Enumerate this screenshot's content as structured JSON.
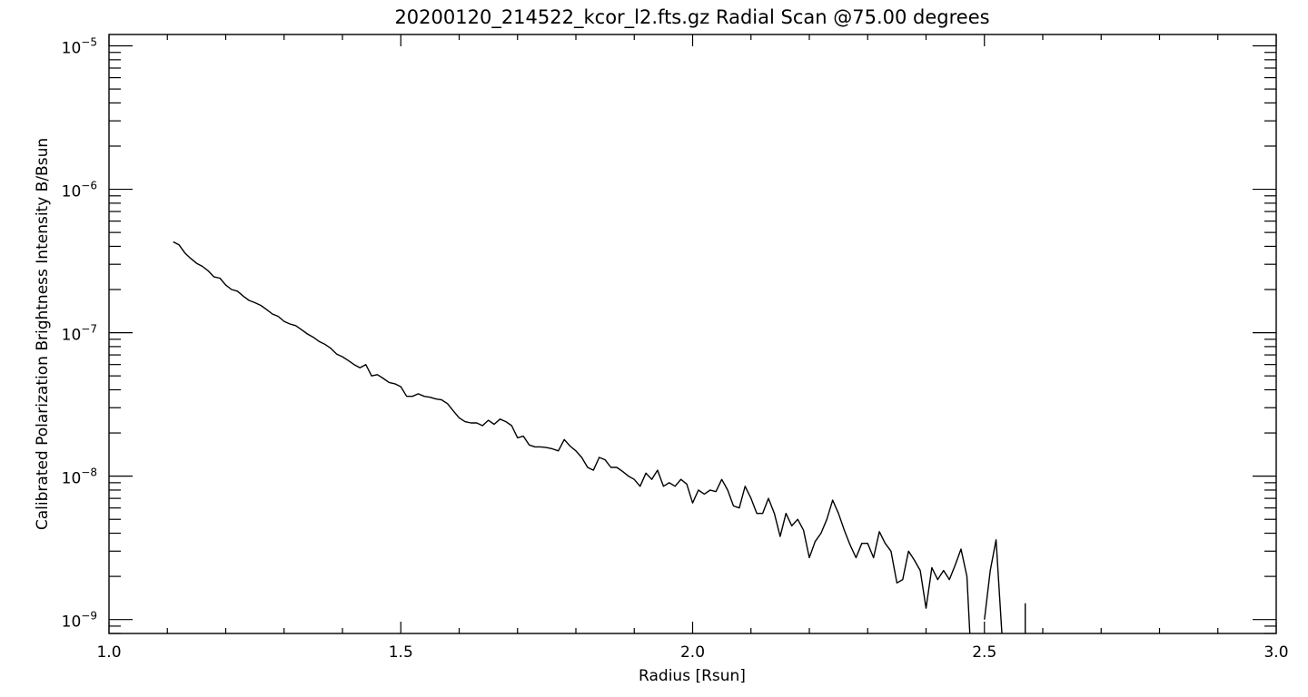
{
  "chart_data": {
    "type": "line",
    "title": "20200120_214522_kcor_l2.fts.gz Radial Scan @75.00 degrees",
    "xlabel": "Radius [Rsun]",
    "ylabel": "Calibrated Polarization Brightness Intensity B/Bsun",
    "xlim": [
      1.0,
      3.0
    ],
    "ylim": [
      8e-10,
      1.2e-05
    ],
    "yscale": "log",
    "grid": false,
    "x_ticks": [
      1.0,
      1.5,
      2.0,
      2.5,
      3.0
    ],
    "x_tick_labels": [
      "1.0",
      "1.5",
      "2.0",
      "2.5",
      "3.0"
    ],
    "y_ticks": [
      1e-09,
      1e-08,
      1e-07,
      1e-06,
      1e-05
    ],
    "y_tick_labels": [
      {
        "base": "10",
        "exp": "−9"
      },
      {
        "base": "10",
        "exp": "−8"
      },
      {
        "base": "10",
        "exp": "−7"
      },
      {
        "base": "10",
        "exp": "−6"
      },
      {
        "base": "10",
        "exp": "−5"
      }
    ],
    "series": [
      {
        "segments": [
          [
            [
              1.11,
              4.3e-07
            ],
            [
              1.12,
              4.1e-07
            ],
            [
              1.13,
              3.6e-07
            ],
            [
              1.14,
              3.3e-07
            ],
            [
              1.15,
              3.05e-07
            ],
            [
              1.16,
              2.9e-07
            ],
            [
              1.17,
              2.7e-07
            ],
            [
              1.18,
              2.45e-07
            ],
            [
              1.19,
              2.4e-07
            ],
            [
              1.2,
              2.15e-07
            ],
            [
              1.21,
              2e-07
            ],
            [
              1.22,
              1.95e-07
            ],
            [
              1.23,
              1.8e-07
            ],
            [
              1.24,
              1.68e-07
            ],
            [
              1.25,
              1.62e-07
            ],
            [
              1.26,
              1.55e-07
            ],
            [
              1.27,
              1.45e-07
            ],
            [
              1.28,
              1.35e-07
            ],
            [
              1.29,
              1.3e-07
            ],
            [
              1.3,
              1.2e-07
            ],
            [
              1.31,
              1.15e-07
            ],
            [
              1.32,
              1.12e-07
            ],
            [
              1.33,
              1.05e-07
            ],
            [
              1.34,
              9.8e-08
            ],
            [
              1.35,
              9.3e-08
            ],
            [
              1.36,
              8.7e-08
            ],
            [
              1.37,
              8.3e-08
            ],
            [
              1.38,
              7.8e-08
            ],
            [
              1.39,
              7.1e-08
            ],
            [
              1.4,
              6.8e-08
            ],
            [
              1.41,
              6.4e-08
            ],
            [
              1.42,
              6e-08
            ],
            [
              1.43,
              5.7e-08
            ],
            [
              1.44,
              6e-08
            ],
            [
              1.45,
              5e-08
            ],
            [
              1.46,
              5.1e-08
            ],
            [
              1.47,
              4.8e-08
            ],
            [
              1.48,
              4.5e-08
            ],
            [
              1.49,
              4.4e-08
            ],
            [
              1.5,
              4.2e-08
            ],
            [
              1.51,
              3.6e-08
            ],
            [
              1.52,
              3.6e-08
            ],
            [
              1.53,
              3.75e-08
            ],
            [
              1.54,
              3.6e-08
            ],
            [
              1.55,
              3.55e-08
            ],
            [
              1.56,
              3.45e-08
            ],
            [
              1.57,
              3.4e-08
            ],
            [
              1.58,
              3.2e-08
            ],
            [
              1.59,
              2.85e-08
            ],
            [
              1.6,
              2.55e-08
            ],
            [
              1.61,
              2.4e-08
            ],
            [
              1.62,
              2.35e-08
            ],
            [
              1.63,
              2.35e-08
            ],
            [
              1.64,
              2.25e-08
            ],
            [
              1.65,
              2.45e-08
            ],
            [
              1.66,
              2.3e-08
            ],
            [
              1.67,
              2.5e-08
            ],
            [
              1.68,
              2.4e-08
            ],
            [
              1.69,
              2.25e-08
            ],
            [
              1.7,
              1.85e-08
            ],
            [
              1.71,
              1.9e-08
            ],
            [
              1.72,
              1.65e-08
            ],
            [
              1.73,
              1.6e-08
            ],
            [
              1.74,
              1.6e-08
            ],
            [
              1.75,
              1.58e-08
            ],
            [
              1.76,
              1.55e-08
            ],
            [
              1.77,
              1.5e-08
            ],
            [
              1.78,
              1.8e-08
            ],
            [
              1.79,
              1.62e-08
            ],
            [
              1.8,
              1.5e-08
            ],
            [
              1.81,
              1.35e-08
            ],
            [
              1.82,
              1.15e-08
            ],
            [
              1.83,
              1.1e-08
            ],
            [
              1.84,
              1.35e-08
            ],
            [
              1.85,
              1.3e-08
            ],
            [
              1.86,
              1.15e-08
            ],
            [
              1.87,
              1.15e-08
            ],
            [
              1.88,
              1.08e-08
            ],
            [
              1.89,
              1e-08
            ],
            [
              1.9,
              9.5e-09
            ],
            [
              1.91,
              8.5e-09
            ],
            [
              1.92,
              1.05e-08
            ],
            [
              1.93,
              9.5e-09
            ],
            [
              1.94,
              1.1e-08
            ],
            [
              1.95,
              8.5e-09
            ],
            [
              1.96,
              9e-09
            ],
            [
              1.97,
              8.5e-09
            ],
            [
              1.98,
              9.5e-09
            ],
            [
              1.99,
              8.8e-09
            ],
            [
              2.0,
              6.5e-09
            ],
            [
              2.01,
              8e-09
            ],
            [
              2.02,
              7.5e-09
            ],
            [
              2.03,
              8e-09
            ],
            [
              2.04,
              7.8e-09
            ],
            [
              2.05,
              9.5e-09
            ],
            [
              2.06,
              8e-09
            ],
            [
              2.07,
              6.2e-09
            ],
            [
              2.08,
              6e-09
            ],
            [
              2.09,
              8.5e-09
            ],
            [
              2.1,
              7e-09
            ],
            [
              2.11,
              5.5e-09
            ],
            [
              2.12,
              5.5e-09
            ],
            [
              2.13,
              7e-09
            ],
            [
              2.14,
              5.5e-09
            ],
            [
              2.15,
              3.8e-09
            ],
            [
              2.16,
              5.5e-09
            ],
            [
              2.17,
              4.5e-09
            ],
            [
              2.18,
              5e-09
            ],
            [
              2.19,
              4.2e-09
            ],
            [
              2.2,
              2.7e-09
            ],
            [
              2.21,
              3.5e-09
            ],
            [
              2.22,
              4e-09
            ],
            [
              2.23,
              5e-09
            ],
            [
              2.24,
              6.8e-09
            ],
            [
              2.25,
              5.5e-09
            ],
            [
              2.26,
              4.2e-09
            ],
            [
              2.27,
              3.3e-09
            ],
            [
              2.28,
              2.7e-09
            ],
            [
              2.29,
              3.4e-09
            ],
            [
              2.3,
              3.4e-09
            ],
            [
              2.31,
              2.7e-09
            ],
            [
              2.32,
              4.1e-09
            ],
            [
              2.33,
              3.4e-09
            ],
            [
              2.34,
              3e-09
            ],
            [
              2.35,
              1.8e-09
            ],
            [
              2.36,
              1.9e-09
            ],
            [
              2.37,
              3e-09
            ],
            [
              2.38,
              2.6e-09
            ],
            [
              2.39,
              2.2e-09
            ],
            [
              2.4,
              1.2e-09
            ],
            [
              2.41,
              2.3e-09
            ],
            [
              2.42,
              1.9e-09
            ],
            [
              2.43,
              2.2e-09
            ],
            [
              2.44,
              1.9e-09
            ],
            [
              2.45,
              2.4e-09
            ],
            [
              2.46,
              3.1e-09
            ],
            [
              2.47,
              2e-09
            ],
            [
              2.475,
              8e-10
            ]
          ],
          [
            [
              2.5,
              1e-09
            ],
            [
              2.51,
              2.2e-09
            ],
            [
              2.52,
              3.6e-09
            ],
            [
              2.53,
              8e-10
            ]
          ],
          [
            [
              2.57,
              1.3e-09
            ],
            [
              2.57,
              8e-10
            ]
          ]
        ]
      }
    ]
  }
}
